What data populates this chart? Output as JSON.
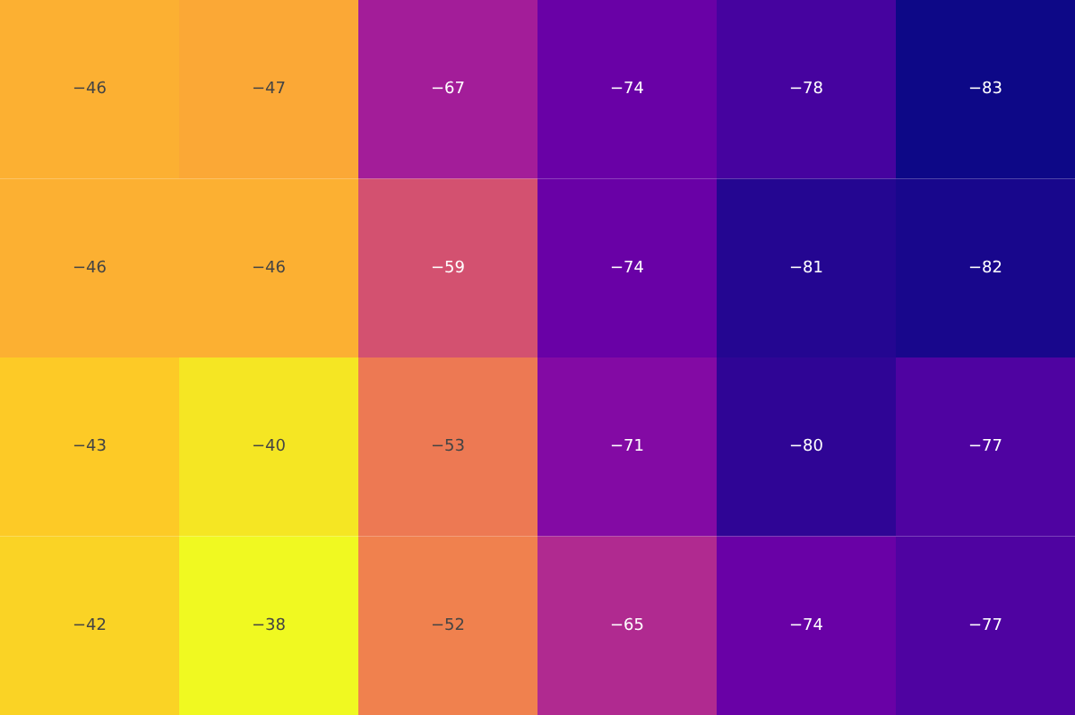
{
  "chart_data": {
    "type": "heatmap",
    "categories": [
      null,
      null,
      null,
      null,
      null,
      null
    ],
    "y_categories": [
      null,
      null,
      null,
      null
    ],
    "cells": [
      [
        -46,
        -47,
        -67,
        -74,
        -78,
        -83
      ],
      [
        -46,
        -46,
        -59,
        -74,
        -81,
        -82
      ],
      [
        -43,
        -40,
        -53,
        -71,
        -80,
        -77
      ],
      [
        -42,
        -38,
        -52,
        -65,
        -74,
        -77
      ]
    ],
    "cell_labels": [
      [
        "−46",
        "−47",
        "−67",
        "−74",
        "−78",
        "−83"
      ],
      [
        "−46",
        "−46",
        "−59",
        "−74",
        "−81",
        "−82"
      ],
      [
        "−43",
        "−40",
        "−53",
        "−71",
        "−80",
        "−77"
      ],
      [
        "−42",
        "−38",
        "−52",
        "−65",
        "−74",
        "−77"
      ]
    ]
  }
}
